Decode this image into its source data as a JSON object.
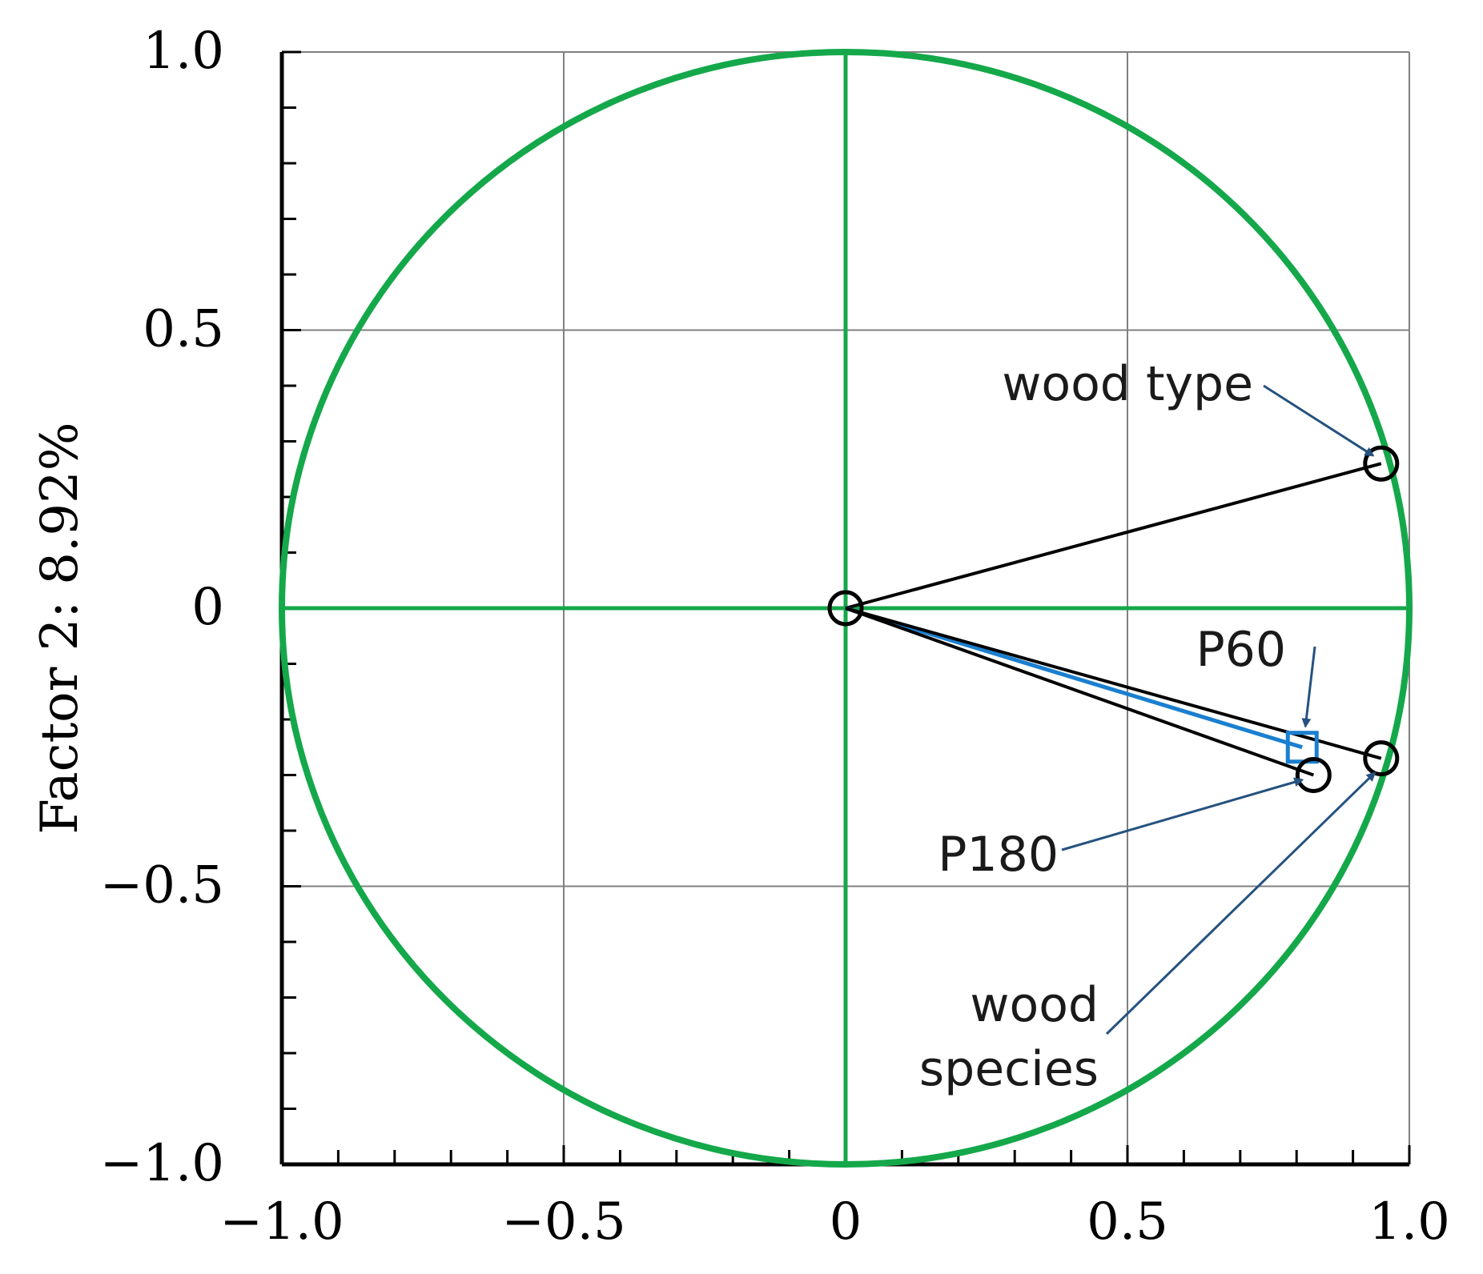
{
  "chart_data": {
    "type": "scatter",
    "title": "",
    "xlabel": "",
    "ylabel": "Factor 2: 8.92%",
    "xlim": [
      -1.0,
      1.0
    ],
    "ylim": [
      -1.0,
      1.0
    ],
    "x_ticks": [
      {
        "value": -1.0,
        "label": "−1.0"
      },
      {
        "value": -0.5,
        "label": "−0.5"
      },
      {
        "value": 0,
        "label": "0"
      },
      {
        "value": 0.5,
        "label": "0.5"
      },
      {
        "value": 1.0,
        "label": "1.0"
      }
    ],
    "y_ticks": [
      {
        "value": 1.0,
        "label": "1.0"
      },
      {
        "value": 0.5,
        "label": "0.5"
      },
      {
        "value": 0,
        "label": "0"
      },
      {
        "value": -0.5,
        "label": "−0.5"
      },
      {
        "value": -1.0,
        "label": "−1.0"
      }
    ],
    "grid": true,
    "unit_circle": true,
    "origin": {
      "x": 0,
      "y": 0
    },
    "points": [
      {
        "name": "wood type",
        "label_lines": [
          "wood type"
        ],
        "x": 0.95,
        "y": 0.26,
        "marker": "circle",
        "color": "#000000"
      },
      {
        "name": "P60",
        "label_lines": [
          "P60"
        ],
        "x": 0.81,
        "y": -0.25,
        "marker": "square",
        "color": "#1a7fd0"
      },
      {
        "name": "P180",
        "label_lines": [
          "P180"
        ],
        "x": 0.83,
        "y": -0.3,
        "marker": "circle",
        "color": "#000000"
      },
      {
        "name": "wood species",
        "label_lines": [
          "wood",
          "species"
        ],
        "x": 0.95,
        "y": -0.27,
        "marker": "circle",
        "color": "#000000"
      }
    ],
    "colors": {
      "circle": "#14a84a",
      "axes_lines": "#14a84a",
      "grid": "#808080",
      "vector": "#000000",
      "vector_highlight": "#1a7fd0",
      "annotation_arrow": "#25527f"
    }
  }
}
